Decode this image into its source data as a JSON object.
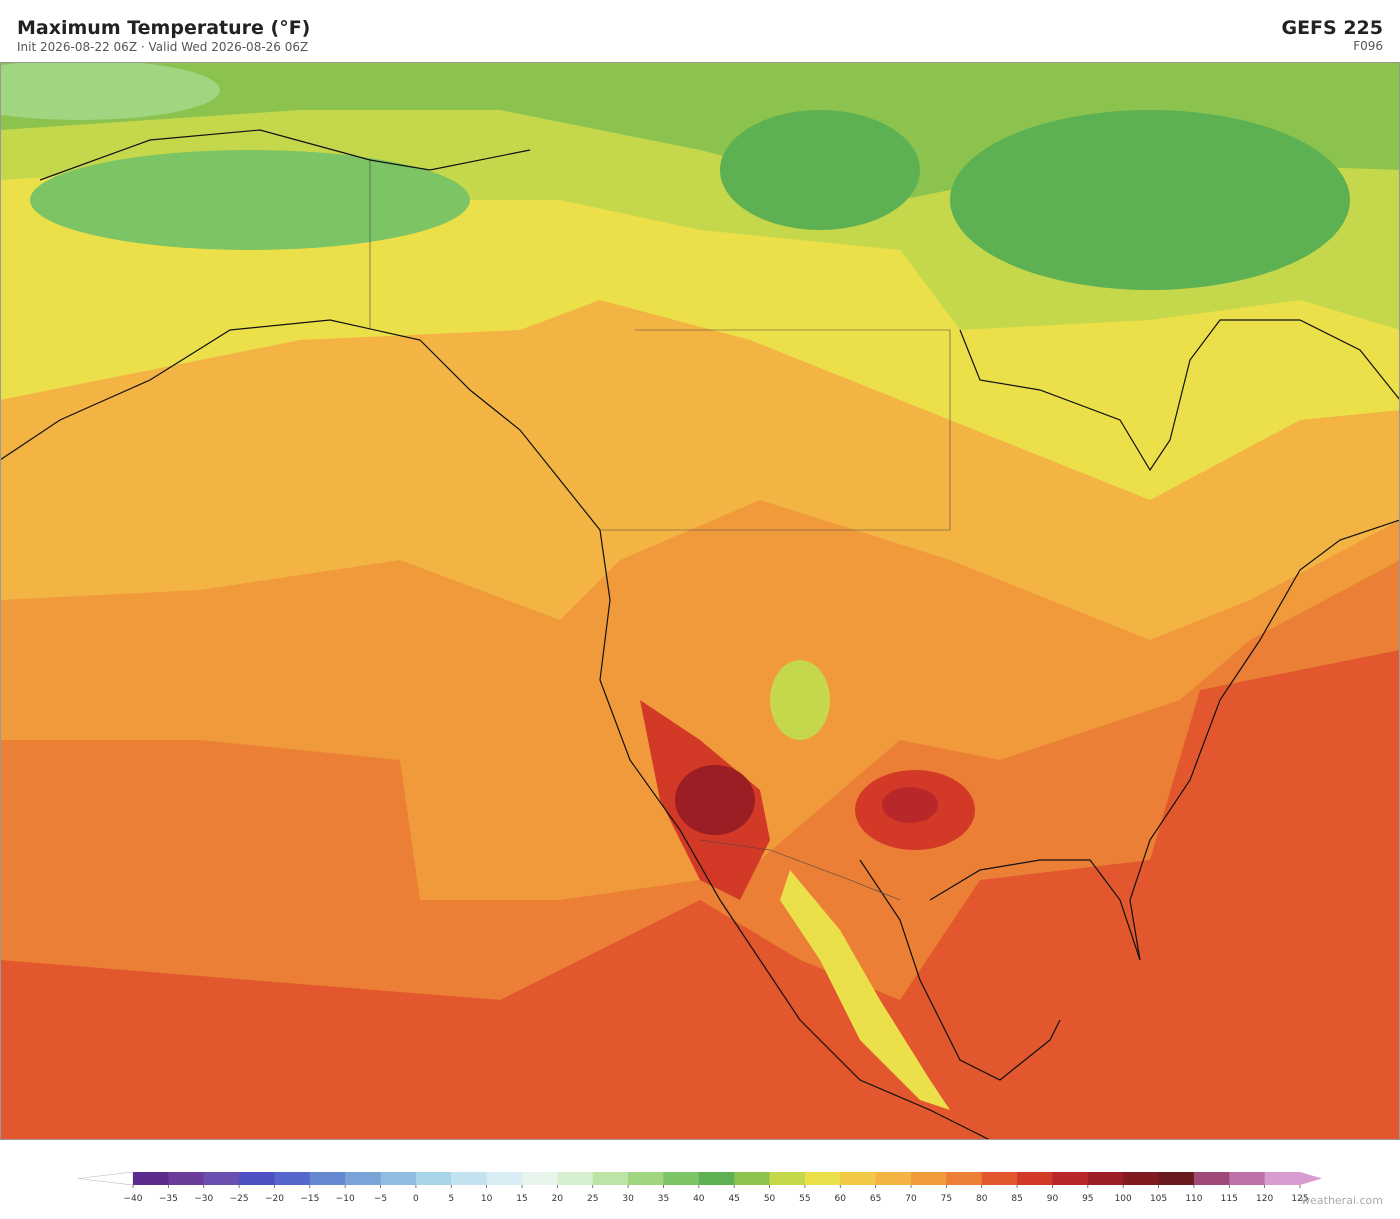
{
  "header": {
    "title": "Maximum Temperature  (°F)",
    "subtitle": "Init 2026-08-22 06Z  ·  Valid Wed 2026-08-26 06Z",
    "model": "GEFS  225",
    "forecast_hour": "F096"
  },
  "colorbar": {
    "ticks": [
      {
        "value": -40,
        "label": "−40"
      },
      {
        "value": -35,
        "label": "−35"
      },
      {
        "value": -30,
        "label": "−30"
      },
      {
        "value": -25,
        "label": "−25"
      },
      {
        "value": -20,
        "label": "−20"
      },
      {
        "value": -15,
        "label": "−15"
      },
      {
        "value": -10,
        "label": "−10"
      },
      {
        "value": -5,
        "label": "−5"
      },
      0,
      5,
      10,
      15,
      20,
      25,
      30,
      35,
      40,
      45,
      50,
      55,
      60,
      65,
      70,
      75,
      80,
      85,
      90,
      95,
      100,
      105,
      110,
      115,
      120,
      125
    ],
    "colors": [
      "#5b2a8c",
      "#6a3d9a",
      "#6a4fb0",
      "#4f4fc4",
      "#5566cc",
      "#6688d0",
      "#7aa4d8",
      "#8fbce0",
      "#a8d4ea",
      "#c2e2f0",
      "#d8eef4",
      "#e6f4ec",
      "#d6eed0",
      "#bde3a6",
      "#9fd67f",
      "#7cc464",
      "#5db153",
      "#8cc34f",
      "#c5d84c",
      "#ece04a",
      "#f2c847",
      "#f3b444",
      "#f09a3c",
      "#ea7f35",
      "#e2572d",
      "#d23a27",
      "#b8282a",
      "#9a1e24",
      "#801a20",
      "#6a1a1f",
      "#a04878",
      "#c070a8",
      "#d89cd0"
    ],
    "under_color": "#ffffff",
    "over_color": "#d89cd0"
  },
  "footer": {
    "watermark": "weatherai.com"
  }
}
